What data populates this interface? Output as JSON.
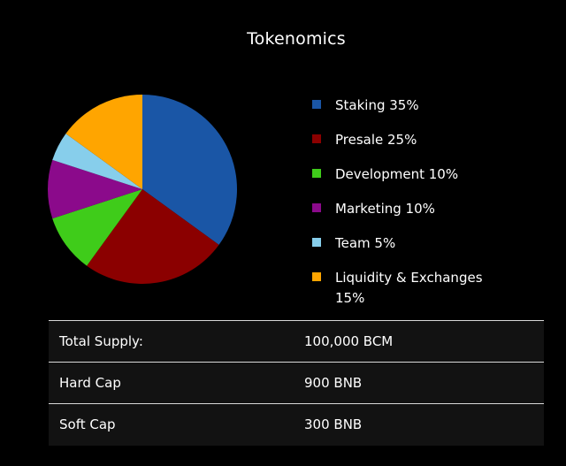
{
  "page": {
    "title": "Tokenomics"
  },
  "chart_data": {
    "type": "pie",
    "slices": [
      {
        "label": "Staking 35%",
        "value": 35,
        "color": "#1a56a6"
      },
      {
        "label": "Presale 25%",
        "value": 25,
        "color": "#8b0000"
      },
      {
        "label": "Development 10%",
        "value": 10,
        "color": "#3fcc1a"
      },
      {
        "label": "Marketing 10%",
        "value": 10,
        "color": "#8b0a8b"
      },
      {
        "label": "Team 5%",
        "value": 5,
        "color": "#87ceeb"
      },
      {
        "label": "Liquidity & Exchanges 15%",
        "value": 15,
        "color": "#ffa500"
      }
    ],
    "start_angle_deg": 0,
    "direction": "clockwise"
  },
  "table": {
    "rows": [
      {
        "label": "Total Supply:",
        "value": "100,000 BCM"
      },
      {
        "label": "Hard Cap",
        "value": "900 BNB"
      },
      {
        "label": "Soft Cap",
        "value": "300 BNB"
      }
    ]
  }
}
